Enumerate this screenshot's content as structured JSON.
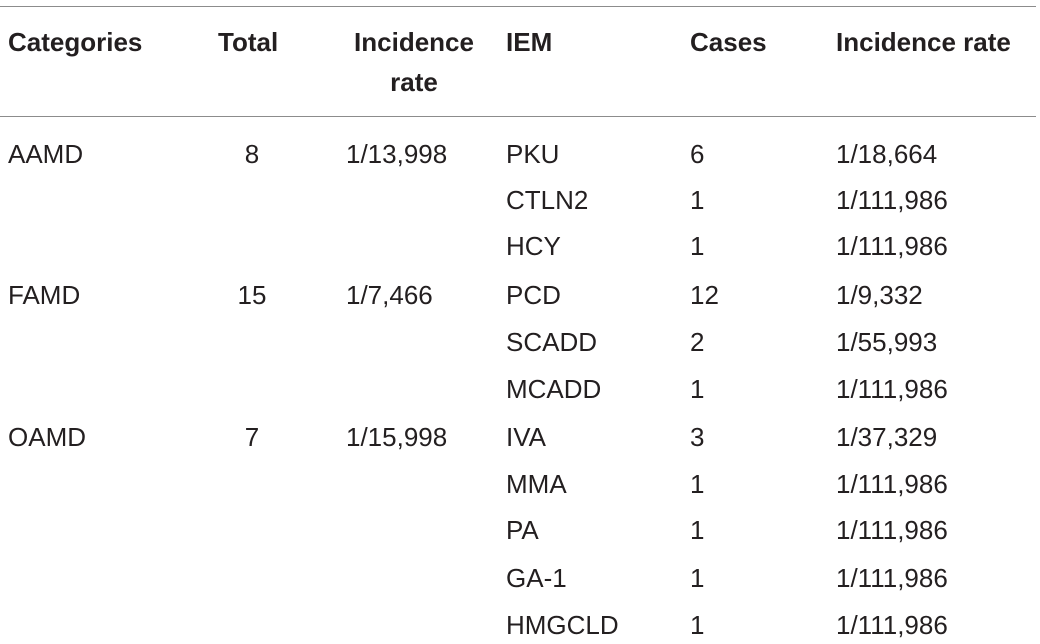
{
  "table": {
    "headers": {
      "categories": "Categories",
      "total": "Total",
      "incidence_rate_line1": "Incidence",
      "incidence_rate_line2": "rate",
      "iem": "IEM",
      "cases": "Cases",
      "incidence_rate": "Incidence rate"
    },
    "groups": [
      {
        "category": "AAMD",
        "total": "8",
        "incidence_rate": "1/13,998"
      },
      {
        "category": "FAMD",
        "total": "15",
        "incidence_rate": "1/7,466"
      },
      {
        "category": "OAMD",
        "total": "7",
        "incidence_rate": "1/15,998"
      }
    ],
    "rows": [
      {
        "iem": "PKU",
        "cases": "6",
        "incidence_rate": "1/18,664"
      },
      {
        "iem": "CTLN2",
        "cases": "1",
        "incidence_rate": "1/111,986"
      },
      {
        "iem": "HCY",
        "cases": "1",
        "incidence_rate": "1/111,986"
      },
      {
        "iem": "PCD",
        "cases": "12",
        "incidence_rate": "1/9,332"
      },
      {
        "iem": "SCADD",
        "cases": "2",
        "incidence_rate": "1/55,993"
      },
      {
        "iem": "MCADD",
        "cases": "1",
        "incidence_rate": "1/111,986"
      },
      {
        "iem": "IVA",
        "cases": "3",
        "incidence_rate": "1/37,329"
      },
      {
        "iem": "MMA",
        "cases": "1",
        "incidence_rate": "1/111,986"
      },
      {
        "iem": "PA",
        "cases": "1",
        "incidence_rate": "1/111,986"
      },
      {
        "iem": "GA-1",
        "cases": "1",
        "incidence_rate": "1/111,986"
      },
      {
        "iem": "HMGCLD",
        "cases": "1",
        "incidence_rate": "1/111,986"
      }
    ]
  }
}
